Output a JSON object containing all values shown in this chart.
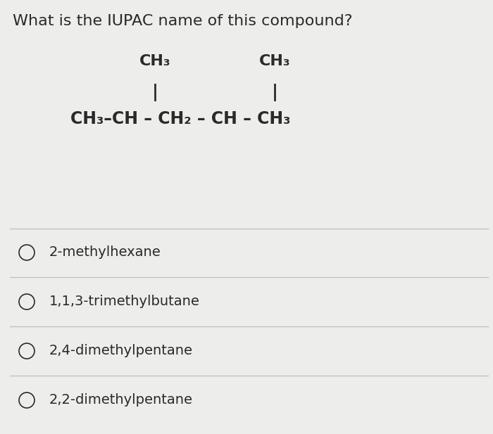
{
  "title": "What is the IUPAC name of this compound?",
  "title_fontsize": 16,
  "background_color": "#ededeb",
  "text_color": "#2a2a2a",
  "choices": [
    "2-methylhexane",
    "1,1,3-trimethylbutane",
    "2,4-dimethylpentane",
    "2,2-dimethylpentane"
  ],
  "divider_color": "#c0bebb",
  "circle_color": "#2a2a2a",
  "choice_fontsize": 14,
  "structure_fontsize": 16
}
